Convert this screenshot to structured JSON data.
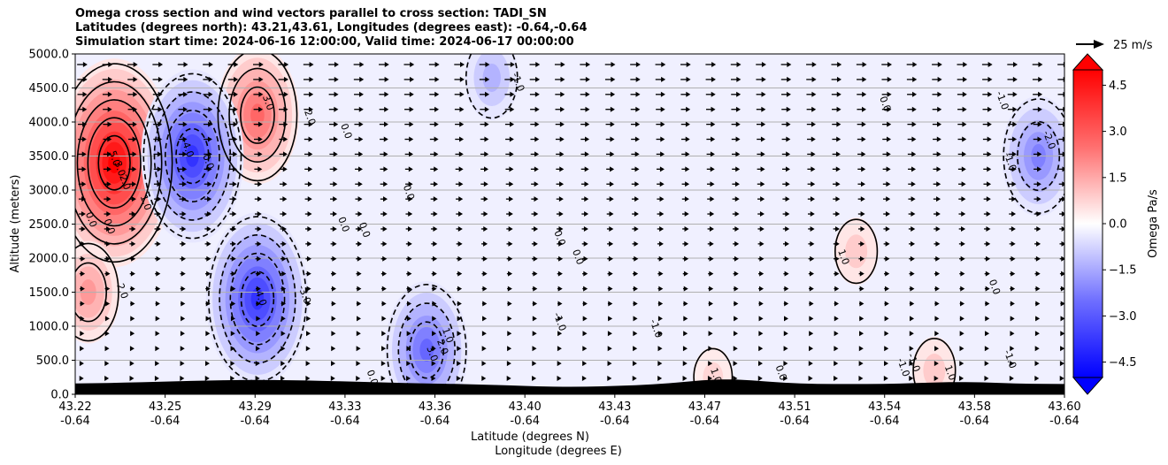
{
  "chart_data": {
    "type": "heatmap",
    "title_lines": [
      "Omega cross section and wind vectors parallel to cross section: TADI_SN",
      "Latitudes (degrees north): 43.21,43.61, Longitudes (degrees east): -0.64,-0.64",
      "Simulation start time: 2024-06-16 12:00:00, Valid time: 2024-06-17 00:00:00"
    ],
    "ylabel": "Altitude (meters)",
    "xlabel_lines": [
      "Latitude (degrees N)",
      "Longitude (degrees E)"
    ],
    "ylim": [
      0,
      5000
    ],
    "xlim": [
      43.22,
      43.6
    ],
    "y_ticks": [
      "0.0",
      "500.0",
      "1000.0",
      "1500.0",
      "2000.0",
      "2500.0",
      "3000.0",
      "3500.0",
      "4000.0",
      "4500.0",
      "5000.0"
    ],
    "x_ticks": [
      {
        "lat": "43.22",
        "lon": "-0.64"
      },
      {
        "lat": "43.25",
        "lon": "-0.64"
      },
      {
        "lat": "43.29",
        "lon": "-0.64"
      },
      {
        "lat": "43.33",
        "lon": "-0.64"
      },
      {
        "lat": "43.36",
        "lon": "-0.64"
      },
      {
        "lat": "43.40",
        "lon": "-0.64"
      },
      {
        "lat": "43.43",
        "lon": "-0.64"
      },
      {
        "lat": "43.47",
        "lon": "-0.64"
      },
      {
        "lat": "43.51",
        "lon": "-0.64"
      },
      {
        "lat": "43.54",
        "lon": "-0.64"
      },
      {
        "lat": "43.58",
        "lon": "-0.64"
      },
      {
        "lat": "43.60",
        "lon": "-0.64"
      }
    ],
    "colorbar": {
      "label": "Omega Pa/s",
      "range": [
        -5,
        5
      ],
      "ticks": [
        "4.5",
        "3.0",
        "1.5",
        "0.0",
        "−1.5",
        "−3.0",
        "−4.5"
      ],
      "tick_values": [
        4.5,
        3.0,
        1.5,
        0.0,
        -1.5,
        -3.0,
        -4.5
      ],
      "colormap": "bwr"
    },
    "quiver_key": "25 m/s",
    "features": [
      {
        "kind": "max",
        "lat": 43.235,
        "alt": 3400,
        "value": 5.0
      },
      {
        "kind": "max",
        "lat": 43.29,
        "alt": 4100,
        "value": 3.0
      },
      {
        "kind": "max",
        "lat": 43.225,
        "alt": 1500,
        "value": 2.0
      },
      {
        "kind": "min",
        "lat": 43.265,
        "alt": 3500,
        "value": -4.0
      },
      {
        "kind": "min",
        "lat": 43.29,
        "alt": 1400,
        "value": -4.0
      },
      {
        "kind": "min",
        "lat": 43.355,
        "alt": 650,
        "value": -3.0
      },
      {
        "kind": "min",
        "lat": 43.38,
        "alt": 4650,
        "value": -1.5
      },
      {
        "kind": "min",
        "lat": 43.59,
        "alt": 3500,
        "value": -2.5
      },
      {
        "kind": "max",
        "lat": 43.52,
        "alt": 2100,
        "value": 1.0
      },
      {
        "kind": "max",
        "lat": 43.55,
        "alt": 350,
        "value": 1.0
      },
      {
        "kind": "max",
        "lat": 43.465,
        "alt": 250,
        "value": 0.8
      }
    ],
    "contour_labels": [
      {
        "text": "5.0",
        "lat": 43.234,
        "alt": 3450
      },
      {
        "text": "3.0",
        "lat": 43.236,
        "alt": 3300
      },
      {
        "text": "2.0",
        "lat": 43.238,
        "alt": 3100
      },
      {
        "text": "1.0",
        "lat": 43.246,
        "alt": 2800
      },
      {
        "text": "0.0",
        "lat": 43.225,
        "alt": 2550
      },
      {
        "text": "0.0",
        "lat": 43.232,
        "alt": 2450
      },
      {
        "text": "2.0",
        "lat": 43.237,
        "alt": 1500
      },
      {
        "text": "-4.0",
        "lat": 43.262,
        "alt": 3600
      },
      {
        "text": "0.0",
        "lat": 43.27,
        "alt": 3400
      },
      {
        "text": "3.0",
        "lat": 43.293,
        "alt": 4270
      },
      {
        "text": "2.0",
        "lat": 43.309,
        "alt": 4050
      },
      {
        "text": "0.0",
        "lat": 43.323,
        "alt": 3850
      },
      {
        "text": "-4.0",
        "lat": 43.29,
        "alt": 1420
      },
      {
        "text": "-3.0",
        "lat": 43.307,
        "alt": 1450
      },
      {
        "text": "0.0",
        "lat": 43.33,
        "alt": 2400
      },
      {
        "text": "0.0",
        "lat": 43.322,
        "alt": 2480
      },
      {
        "text": "0.0",
        "lat": 43.347,
        "alt": 2950
      },
      {
        "text": "-1.0",
        "lat": 43.389,
        "alt": 4570
      },
      {
        "text": "0.0",
        "lat": 43.405,
        "alt": 2280
      },
      {
        "text": "0.0",
        "lat": 43.412,
        "alt": 2000
      },
      {
        "text": "-1.0",
        "lat": 43.405,
        "alt": 1050
      },
      {
        "text": "1.0",
        "lat": 43.362,
        "alt": 850
      },
      {
        "text": "2.0",
        "lat": 43.36,
        "alt": 680
      },
      {
        "text": "3.0",
        "lat": 43.356,
        "alt": 580
      },
      {
        "text": "0.0",
        "lat": 43.333,
        "alt": 230
      },
      {
        "text": "-1.0",
        "lat": 43.442,
        "alt": 950
      },
      {
        "text": "1.0",
        "lat": 43.465,
        "alt": 260
      },
      {
        "text": "0.0",
        "lat": 43.49,
        "alt": 300
      },
      {
        "text": "1.0",
        "lat": 43.514,
        "alt": 2000
      },
      {
        "text": "0.0",
        "lat": 43.53,
        "alt": 4250
      },
      {
        "text": "0.0",
        "lat": 43.572,
        "alt": 1560
      },
      {
        "text": "-1.0",
        "lat": 43.541,
        "alt": 450
      },
      {
        "text": "-1.0",
        "lat": 43.537,
        "alt": 380
      },
      {
        "text": "1.0",
        "lat": 43.555,
        "alt": 300
      },
      {
        "text": "-1.0",
        "lat": 43.575,
        "alt": 4300
      },
      {
        "text": "-2.0",
        "lat": 43.593,
        "alt": 3720
      },
      {
        "text": "-1.0",
        "lat": 43.578,
        "alt": 3400
      },
      {
        "text": "-1.0",
        "lat": 43.578,
        "alt": 500
      }
    ]
  },
  "colors": {
    "positive_max": "#ff0000",
    "negative_max": "#0000ff",
    "neutral": "#ffffff",
    "terrain": "#000000"
  }
}
